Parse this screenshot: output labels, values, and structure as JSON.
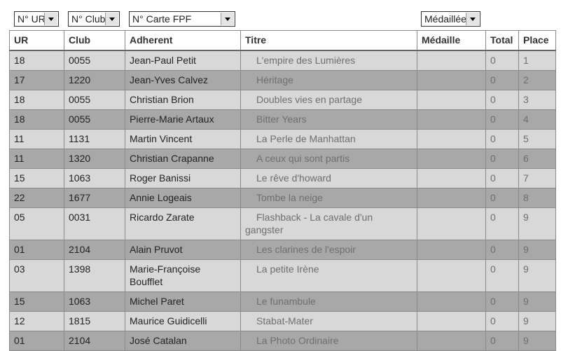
{
  "filters": [
    "N° UR",
    "N° Club",
    "N° Carte FPF",
    "Médaillée"
  ],
  "table": {
    "headers": [
      "UR",
      "Club",
      "Adherent",
      "Titre",
      "Médaille",
      "Total",
      "Place"
    ],
    "rows": [
      {
        "ur": "18",
        "club": "0055",
        "adherent": "Jean-Paul Petit",
        "titre": "L'empire des Lumières",
        "total": "0",
        "place": "1"
      },
      {
        "ur": "17",
        "club": "1220",
        "adherent": "Jean-Yves Calvez",
        "titre": "Héritage",
        "total": "0",
        "place": "2"
      },
      {
        "ur": "18",
        "club": "0055",
        "adherent": "Christian Brion",
        "titre": "Doubles vies en partage",
        "total": "0",
        "place": "3"
      },
      {
        "ur": "18",
        "club": "0055",
        "adherent": "Pierre-Marie Artaux",
        "titre": "Bitter Years",
        "total": "0",
        "place": "4"
      },
      {
        "ur": "11",
        "club": "1131",
        "adherent": "Martin Vincent",
        "titre": "La Perle de Manhattan",
        "total": "0",
        "place": "5"
      },
      {
        "ur": "11",
        "club": "1320",
        "adherent": "Christian Crapanne",
        "titre": "A ceux qui sont partis",
        "total": "0",
        "place": "6"
      },
      {
        "ur": "15",
        "club": "1063",
        "adherent": "Roger Banissi",
        "titre": "Le rêve d'howard",
        "total": "0",
        "place": "7"
      },
      {
        "ur": "22",
        "club": "1677",
        "adherent": "Annie Logeais",
        "titre": "Tombe la neige",
        "total": "0",
        "place": "8"
      },
      {
        "ur": "05",
        "club": "0031",
        "adherent": "Ricardo Zarate",
        "titre": "Flashback - La cavale d'un gangster",
        "total": "0",
        "place": "9"
      },
      {
        "ur": "01",
        "club": "2104",
        "adherent": "Alain Pruvot",
        "titre": "Les clarines de l'espoir",
        "total": "0",
        "place": "9"
      },
      {
        "ur": "03",
        "club": "1398",
        "adherent": "Marie-Françoise Boufflet",
        "titre": "La petite Irène",
        "total": "0",
        "place": "9"
      },
      {
        "ur": "15",
        "club": "1063",
        "adherent": "Michel Paret",
        "titre": "Le funambule",
        "total": "0",
        "place": "9"
      },
      {
        "ur": "12",
        "club": "1815",
        "adherent": "Maurice Guidicelli",
        "titre": "Stabat-Mater",
        "total": "0",
        "place": "9"
      },
      {
        "ur": "01",
        "club": "2104",
        "adherent": "José Catalan",
        "titre": "La Photo Ordinaire",
        "total": "0",
        "place": "9"
      }
    ]
  }
}
